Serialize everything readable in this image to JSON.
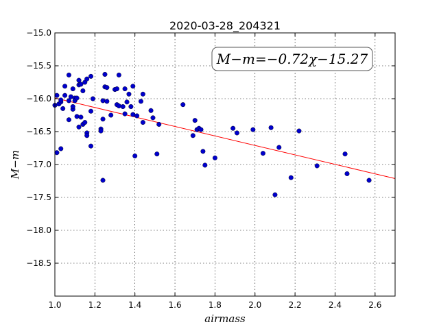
{
  "chart_data": {
    "type": "scatter",
    "title": "2020-03-28_204321",
    "xlabel": "airmass",
    "ylabel": "M−m",
    "xlim": [
      1.0,
      2.7
    ],
    "ylim": [
      -15.0,
      -19.0
    ],
    "y_inverted": true,
    "grid": true,
    "x_ticks": [
      "1.0",
      "1.2",
      "1.4",
      "1.6",
      "1.8",
      "2.0",
      "2.2",
      "2.4",
      "2.6"
    ],
    "y_ticks": [
      "−15.0",
      "−15.5",
      "−16.0",
      "−16.5",
      "−17.0",
      "−17.5",
      "−18.0",
      "−18.5"
    ],
    "annotation": "M−m=−0.72χ−15.27",
    "fit": {
      "slope": -0.72,
      "intercept": -15.27,
      "x_range": [
        1.0,
        2.7
      ],
      "color": "#ff0000"
    },
    "point_color": "#0000cc",
    "points": [
      {
        "x": 1.0,
        "y": -16.1
      },
      {
        "x": 1.01,
        "y": -15.95
      },
      {
        "x": 1.01,
        "y": -16.82
      },
      {
        "x": 1.02,
        "y": -16.08
      },
      {
        "x": 1.03,
        "y": -16.05
      },
      {
        "x": 1.03,
        "y": -16.02
      },
      {
        "x": 1.03,
        "y": -16.76
      },
      {
        "x": 1.04,
        "y": -16.15
      },
      {
        "x": 1.05,
        "y": -15.95
      },
      {
        "x": 1.05,
        "y": -15.81
      },
      {
        "x": 1.07,
        "y": -15.64
      },
      {
        "x": 1.07,
        "y": -16.03
      },
      {
        "x": 1.07,
        "y": -16.32
      },
      {
        "x": 1.08,
        "y": -15.97
      },
      {
        "x": 1.09,
        "y": -16.16
      },
      {
        "x": 1.09,
        "y": -16.12
      },
      {
        "x": 1.09,
        "y": -15.85
      },
      {
        "x": 1.1,
        "y": -15.99
      },
      {
        "x": 1.1,
        "y": -16.03
      },
      {
        "x": 1.11,
        "y": -15.99
      },
      {
        "x": 1.11,
        "y": -16.27
      },
      {
        "x": 1.12,
        "y": -15.72
      },
      {
        "x": 1.12,
        "y": -15.79
      },
      {
        "x": 1.12,
        "y": -16.43
      },
      {
        "x": 1.13,
        "y": -16.28
      },
      {
        "x": 1.13,
        "y": -15.78
      },
      {
        "x": 1.14,
        "y": -15.88
      },
      {
        "x": 1.14,
        "y": -16.39
      },
      {
        "x": 1.15,
        "y": -16.36
      },
      {
        "x": 1.15,
        "y": -15.75
      },
      {
        "x": 1.16,
        "y": -16.52
      },
      {
        "x": 1.16,
        "y": -16.56
      },
      {
        "x": 1.16,
        "y": -15.7
      },
      {
        "x": 1.18,
        "y": -16.72
      },
      {
        "x": 1.18,
        "y": -15.66
      },
      {
        "x": 1.18,
        "y": -16.19
      },
      {
        "x": 1.19,
        "y": -16.0
      },
      {
        "x": 1.23,
        "y": -16.46
      },
      {
        "x": 1.23,
        "y": -16.49
      },
      {
        "x": 1.24,
        "y": -16.03
      },
      {
        "x": 1.24,
        "y": -16.31
      },
      {
        "x": 1.24,
        "y": -17.24
      },
      {
        "x": 1.25,
        "y": -15.63
      },
      {
        "x": 1.25,
        "y": -15.82
      },
      {
        "x": 1.26,
        "y": -15.83
      },
      {
        "x": 1.26,
        "y": -16.04
      },
      {
        "x": 1.28,
        "y": -16.25
      },
      {
        "x": 1.3,
        "y": -15.86
      },
      {
        "x": 1.31,
        "y": -15.85
      },
      {
        "x": 1.31,
        "y": -16.09
      },
      {
        "x": 1.32,
        "y": -16.11
      },
      {
        "x": 1.32,
        "y": -15.64
      },
      {
        "x": 1.34,
        "y": -16.12
      },
      {
        "x": 1.35,
        "y": -16.23
      },
      {
        "x": 1.35,
        "y": -15.85
      },
      {
        "x": 1.36,
        "y": -16.05
      },
      {
        "x": 1.37,
        "y": -15.93
      },
      {
        "x": 1.38,
        "y": -16.12
      },
      {
        "x": 1.39,
        "y": -15.81
      },
      {
        "x": 1.39,
        "y": -16.24
      },
      {
        "x": 1.4,
        "y": -16.87
      },
      {
        "x": 1.41,
        "y": -16.26
      },
      {
        "x": 1.43,
        "y": -16.04
      },
      {
        "x": 1.44,
        "y": -16.36
      },
      {
        "x": 1.44,
        "y": -15.93
      },
      {
        "x": 1.48,
        "y": -16.18
      },
      {
        "x": 1.49,
        "y": -16.29
      },
      {
        "x": 1.51,
        "y": -16.84
      },
      {
        "x": 1.52,
        "y": -16.39
      },
      {
        "x": 1.64,
        "y": -16.09
      },
      {
        "x": 1.69,
        "y": -16.56
      },
      {
        "x": 1.7,
        "y": -16.33
      },
      {
        "x": 1.71,
        "y": -16.47
      },
      {
        "x": 1.72,
        "y": -16.45
      },
      {
        "x": 1.73,
        "y": -16.47
      },
      {
        "x": 1.74,
        "y": -16.8
      },
      {
        "x": 1.75,
        "y": -17.01
      },
      {
        "x": 1.8,
        "y": -16.9
      },
      {
        "x": 1.89,
        "y": -16.45
      },
      {
        "x": 1.91,
        "y": -16.52
      },
      {
        "x": 1.99,
        "y": -16.47
      },
      {
        "x": 2.04,
        "y": -16.83
      },
      {
        "x": 2.08,
        "y": -16.44
      },
      {
        "x": 2.1,
        "y": -17.46
      },
      {
        "x": 2.12,
        "y": -16.74
      },
      {
        "x": 2.18,
        "y": -17.2
      },
      {
        "x": 2.22,
        "y": -16.49
      },
      {
        "x": 2.31,
        "y": -17.02
      },
      {
        "x": 2.45,
        "y": -16.84
      },
      {
        "x": 2.46,
        "y": -17.14
      },
      {
        "x": 2.57,
        "y": -17.24
      }
    ]
  }
}
